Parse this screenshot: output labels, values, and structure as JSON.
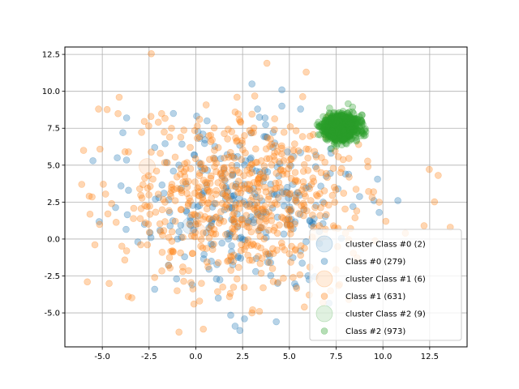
{
  "chart_data": {
    "type": "scatter",
    "title": "",
    "xlabel": "",
    "ylabel": "",
    "xlim": [
      -7.0,
      14.5
    ],
    "ylim": [
      -7.3,
      13.0
    ],
    "xticks": [
      "-5.0",
      "-2.5",
      "0.0",
      "2.5",
      "5.0",
      "7.5",
      "10.0",
      "12.5"
    ],
    "yticks": [
      "-5.0",
      "-2.5",
      "0.0",
      "2.5",
      "5.0",
      "7.5",
      "10.0",
      "12.5"
    ],
    "grid": true,
    "legend_position": "lower-right",
    "series": [
      {
        "name": "Class #0 (279)",
        "color": "#1f77b4",
        "count": 279,
        "distribution": "gaussian",
        "center": [
          2.8,
          2.2
        ],
        "spread": [
          2.9,
          2.6
        ],
        "samples": [
          [
            3.0,
            10.5
          ],
          [
            4.6,
            10.1
          ],
          [
            3.7,
            8.2
          ],
          [
            -1.2,
            8.5
          ],
          [
            -3.9,
            7.2
          ],
          [
            -3.7,
            8.2
          ],
          [
            0.6,
            8.0
          ],
          [
            3.3,
            8.8
          ],
          [
            4.6,
            9.0
          ],
          [
            5.6,
            8.8
          ],
          [
            -2.2,
            6.2
          ],
          [
            -1.2,
            4.6
          ],
          [
            -0.1,
            5.7
          ],
          [
            -5.5,
            5.3
          ],
          [
            -4.2,
            5.5
          ],
          [
            10.8,
            2.6
          ],
          [
            9.8,
            1.8
          ],
          [
            -3.6,
            3.3
          ],
          [
            -4.0,
            3.6
          ],
          [
            2.1,
            -5.9
          ],
          [
            2.6,
            -5.4
          ],
          [
            4.3,
            -5.6
          ],
          [
            1.2,
            -4.0
          ],
          [
            -2.2,
            -3.4
          ],
          [
            -0.2,
            -3.1
          ],
          [
            -2.4,
            0.1
          ],
          [
            -3.1,
            -0.2
          ],
          [
            5.2,
            0.7
          ],
          [
            6.1,
            1.2
          ],
          [
            7.6,
            3.4
          ],
          [
            8.0,
            4.4
          ],
          [
            7.2,
            6.1
          ],
          [
            0.2,
            6.8
          ],
          [
            0.4,
            3.1
          ],
          [
            1.0,
            2.4
          ],
          [
            2.6,
            3.7
          ],
          [
            3.5,
            1.5
          ],
          [
            4.1,
            2.1
          ],
          [
            5.2,
            3.7
          ],
          [
            1.8,
            0.4
          ],
          [
            2.4,
            -1.3
          ],
          [
            3.2,
            -2.2
          ],
          [
            4.0,
            -1.6
          ],
          [
            -1.4,
            1.8
          ],
          [
            -0.6,
            -1.2
          ],
          [
            0.8,
            0.9
          ],
          [
            6.8,
            2.5
          ],
          [
            5.6,
            -0.8
          ],
          [
            2.9,
            5.4
          ],
          [
            1.5,
            4.7
          ],
          [
            -1.7,
            3.1
          ],
          [
            4.9,
            5.9
          ],
          [
            3.8,
            6.9
          ],
          [
            1.1,
            -2.7
          ],
          [
            -0.9,
            0.5
          ],
          [
            6.4,
            4.9
          ],
          [
            8.4,
            2.2
          ],
          [
            2.0,
            2.9
          ],
          [
            0.1,
            2.2
          ],
          [
            3.6,
            3.9
          ]
        ]
      },
      {
        "name": "Class #1 (631)",
        "color": "#ff7f0e",
        "count": 631,
        "distribution": "gaussian",
        "center": [
          2.4,
          2.7
        ],
        "spread": [
          3.1,
          2.8
        ],
        "samples": [
          [
            3.8,
            11.9
          ],
          [
            5.9,
            11.3
          ],
          [
            2.2,
            9.6
          ],
          [
            2.4,
            7.9
          ],
          [
            -5.2,
            8.8
          ],
          [
            -2.4,
            8.3
          ],
          [
            -6.0,
            6.0
          ],
          [
            -6.1,
            3.7
          ],
          [
            -5.7,
            2.9
          ],
          [
            -5.8,
            -2.9
          ],
          [
            -4.5,
            2.4
          ],
          [
            13.6,
            0.8
          ],
          [
            12.2,
            0.9
          ],
          [
            11.2,
            0.4
          ],
          [
            9.5,
            3.2
          ],
          [
            9.2,
            4.9
          ],
          [
            8.7,
            6.4
          ],
          [
            -0.9,
            -6.3
          ],
          [
            0.4,
            -6.1
          ],
          [
            -1.0,
            -3.5
          ],
          [
            -0.1,
            -4.4
          ],
          [
            0.2,
            -4.2
          ],
          [
            3.4,
            -4.9
          ],
          [
            3.0,
            -5.0
          ],
          [
            5.8,
            -4.6
          ],
          [
            6.8,
            -4.3
          ],
          [
            7.2,
            -3.5
          ],
          [
            1.1,
            1.5
          ],
          [
            1.8,
            2.6
          ],
          [
            2.3,
            3.4
          ],
          [
            2.9,
            2.2
          ],
          [
            3.4,
            1.2
          ],
          [
            0.6,
            3.8
          ],
          [
            -0.4,
            2.4
          ],
          [
            -1.1,
            1.2
          ],
          [
            1.6,
            0.3
          ],
          [
            2.6,
            -0.7
          ],
          [
            3.9,
            0.6
          ],
          [
            4.4,
            2.8
          ],
          [
            5.1,
            4.1
          ],
          [
            4.7,
            5.3
          ],
          [
            3.2,
            6.1
          ],
          [
            1.9,
            5.6
          ],
          [
            0.8,
            6.6
          ],
          [
            -0.6,
            5.1
          ],
          [
            -2.1,
            4.6
          ],
          [
            -3.0,
            3.4
          ],
          [
            -2.7,
            1.1
          ],
          [
            -1.8,
            -0.9
          ],
          [
            -0.7,
            -2.2
          ],
          [
            1.2,
            -1.6
          ],
          [
            2.2,
            -2.7
          ],
          [
            4.1,
            -2.0
          ],
          [
            5.6,
            -1.1
          ],
          [
            6.6,
            0.9
          ],
          [
            7.1,
            2.3
          ],
          [
            6.3,
            3.9
          ],
          [
            5.9,
            6.1
          ],
          [
            4.2,
            7.4
          ],
          [
            2.6,
            7.0
          ],
          [
            0.2,
            8.1
          ],
          [
            -1.4,
            6.9
          ],
          [
            -3.6,
            5.9
          ],
          [
            -4.7,
            1.7
          ],
          [
            -3.7,
            -0.8
          ],
          [
            -2.2,
            -2.6
          ],
          [
            0.3,
            -3.0
          ],
          [
            1.8,
            -3.9
          ],
          [
            3.6,
            -3.3
          ],
          [
            5.2,
            -2.6
          ],
          [
            6.1,
            -1.9
          ],
          [
            8.0,
            0.4
          ],
          [
            8.6,
            1.9
          ],
          [
            7.9,
            3.1
          ],
          [
            3.0,
            4.5
          ],
          [
            1.4,
            3.1
          ],
          [
            0.0,
            1.0
          ],
          [
            -1.3,
            3.3
          ],
          [
            2.7,
            1.6
          ],
          [
            3.7,
            3.5
          ],
          [
            4.8,
            1.3
          ],
          [
            1.0,
            4.9
          ],
          [
            -0.3,
            6.2
          ],
          [
            2.1,
            8.6
          ],
          [
            6.9,
            5.2
          ],
          [
            5.4,
            2.5
          ],
          [
            3.1,
            -0.4
          ],
          [
            0.9,
            -0.7
          ],
          [
            -2.6,
            2.2
          ],
          [
            -1.9,
            5.8
          ]
        ]
      },
      {
        "name": "Class #2 (973)",
        "color": "#2ca02c",
        "count": 973,
        "distribution": "gaussian",
        "center": [
          7.75,
          7.55
        ],
        "spread": [
          0.45,
          0.42
        ],
        "samples": [
          [
            7.1,
            8.0
          ],
          [
            7.8,
            8.5
          ],
          [
            8.4,
            7.8
          ],
          [
            8.6,
            7.2
          ],
          [
            7.9,
            6.7
          ],
          [
            7.2,
            7.0
          ],
          [
            6.9,
            7.6
          ],
          [
            8.2,
            8.2
          ],
          [
            7.5,
            7.4
          ],
          [
            8.0,
            7.5
          ]
        ]
      }
    ],
    "clusters": [
      {
        "name": "cluster Class #0 (2)",
        "color": "#1f77b4",
        "centers": [
          [
            -0.3,
            0.9
          ],
          [
            4.7,
            2.9
          ]
        ]
      },
      {
        "name": "cluster Class #1 (6)",
        "color": "#ff7f0e",
        "centers": [
          [
            -2.6,
            4.9
          ],
          [
            1.6,
            4.5
          ],
          [
            5.0,
            5.7
          ],
          [
            0.1,
            0.5
          ],
          [
            3.4,
            1.1
          ],
          [
            6.6,
            0.4
          ]
        ]
      },
      {
        "name": "cluster Class #2 (9)",
        "color": "#2ca02c",
        "centers": [
          [
            7.4,
            7.9
          ],
          [
            8.1,
            7.9
          ],
          [
            7.8,
            7.1
          ],
          [
            7.3,
            7.3
          ],
          [
            8.2,
            7.4
          ],
          [
            7.7,
            8.2
          ],
          [
            7.6,
            7.6
          ],
          [
            8.0,
            7.0
          ],
          [
            7.4,
            7.0
          ]
        ]
      }
    ],
    "legend": [
      {
        "label": "cluster Class #0 (2)",
        "color": "#1f77b4",
        "kind": "cluster"
      },
      {
        "label": "Class #0 (279)",
        "color": "#1f77b4",
        "kind": "point"
      },
      {
        "label": "cluster Class #1 (6)",
        "color": "#ff7f0e",
        "kind": "cluster"
      },
      {
        "label": "Class #1 (631)",
        "color": "#ff7f0e",
        "kind": "point"
      },
      {
        "label": "cluster Class #2 (9)",
        "color": "#2ca02c",
        "kind": "cluster"
      },
      {
        "label": "Class #2 (973)",
        "color": "#2ca02c",
        "kind": "point"
      }
    ]
  }
}
